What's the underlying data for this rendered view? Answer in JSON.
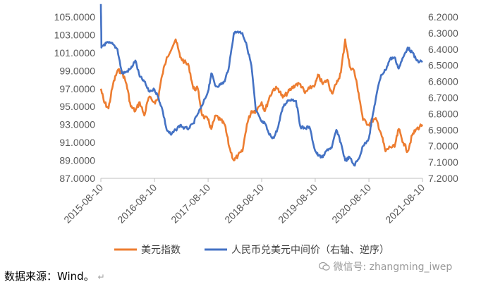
{
  "chart_data": {
    "type": "line",
    "title": "",
    "x": [
      "2015-08-10",
      "2016-08-10",
      "2017-08-10",
      "2018-08-10",
      "2019-08-10",
      "2020-08-10",
      "2021-08-10"
    ],
    "y_left_ticks": [
      "87.0000",
      "89.0000",
      "91.0000",
      "93.0000",
      "95.0000",
      "97.0000",
      "99.0000",
      "101.0000",
      "103.0000",
      "105.0000"
    ],
    "ylim_left": [
      87,
      105
    ],
    "y_right_ticks": [
      "6.2000",
      "6.3000",
      "6.4000",
      "6.5000",
      "6.6000",
      "6.7000",
      "6.8000",
      "6.9000",
      "7.0000",
      "7.1000",
      "7.2000"
    ],
    "ylim_right": [
      6.2,
      7.2
    ],
    "right_axis_reversed": true,
    "grid": false,
    "legend_position": "bottom",
    "series": [
      {
        "name": "美元指数",
        "axis": "left",
        "color": "#ED7D31",
        "points": [
          [
            "2015-08-10",
            97.0
          ],
          [
            "2015-09-01",
            95.5
          ],
          [
            "2015-10-01",
            94.8
          ],
          [
            "2015-11-01",
            97.5
          ],
          [
            "2015-12-01",
            99.0
          ],
          [
            "2016-01-01",
            98.9
          ],
          [
            "2016-02-01",
            97.5
          ],
          [
            "2016-03-01",
            95.0
          ],
          [
            "2016-04-01",
            94.5
          ],
          [
            "2016-05-01",
            95.5
          ],
          [
            "2016-06-01",
            94.0
          ],
          [
            "2016-07-01",
            96.0
          ],
          [
            "2016-08-10",
            95.5
          ],
          [
            "2016-09-01",
            95.8
          ],
          [
            "2016-10-01",
            98.5
          ],
          [
            "2016-11-01",
            100.5
          ],
          [
            "2017-01-01",
            102.5
          ],
          [
            "2017-02-01",
            100.5
          ],
          [
            "2017-03-01",
            100.0
          ],
          [
            "2017-04-01",
            99.5
          ],
          [
            "2017-05-01",
            97.0
          ],
          [
            "2017-06-01",
            97.0
          ],
          [
            "2017-07-01",
            94.0
          ],
          [
            "2017-08-10",
            93.5
          ],
          [
            "2017-09-01",
            92.5
          ],
          [
            "2017-10-01",
            94.0
          ],
          [
            "2017-11-01",
            93.5
          ],
          [
            "2017-12-01",
            93.0
          ],
          [
            "2018-01-01",
            90.5
          ],
          [
            "2018-02-01",
            89.0
          ],
          [
            "2018-03-01",
            89.5
          ],
          [
            "2018-04-01",
            90.0
          ],
          [
            "2018-05-01",
            93.0
          ],
          [
            "2018-06-01",
            94.5
          ],
          [
            "2018-07-01",
            94.5
          ],
          [
            "2018-08-10",
            95.5
          ],
          [
            "2018-09-01",
            94.5
          ],
          [
            "2018-10-01",
            96.0
          ],
          [
            "2018-11-01",
            97.0
          ],
          [
            "2018-12-01",
            97.0
          ],
          [
            "2019-01-01",
            96.0
          ],
          [
            "2019-02-01",
            96.5
          ],
          [
            "2019-03-01",
            97.0
          ],
          [
            "2019-04-01",
            97.5
          ],
          [
            "2019-05-01",
            97.5
          ],
          [
            "2019-06-01",
            96.5
          ],
          [
            "2019-07-01",
            97.0
          ],
          [
            "2019-08-10",
            97.5
          ],
          [
            "2019-09-01",
            98.5
          ],
          [
            "2019-10-01",
            97.5
          ],
          [
            "2019-11-01",
            98.0
          ],
          [
            "2019-12-01",
            96.5
          ],
          [
            "2020-01-01",
            97.5
          ],
          [
            "2020-02-01",
            98.8
          ],
          [
            "2020-03-01",
            102.5
          ],
          [
            "2020-04-01",
            99.5
          ],
          [
            "2020-05-01",
            99.0
          ],
          [
            "2020-06-01",
            96.5
          ],
          [
            "2020-07-01",
            93.5
          ],
          [
            "2020-08-10",
            93.0
          ],
          [
            "2020-09-01",
            93.5
          ],
          [
            "2020-10-01",
            93.5
          ],
          [
            "2020-11-01",
            92.0
          ],
          [
            "2020-12-01",
            90.0
          ],
          [
            "2021-01-01",
            90.5
          ],
          [
            "2021-02-01",
            90.5
          ],
          [
            "2021-03-01",
            92.5
          ],
          [
            "2021-04-01",
            91.0
          ],
          [
            "2021-05-01",
            90.0
          ],
          [
            "2021-06-01",
            91.8
          ],
          [
            "2021-07-01",
            92.5
          ],
          [
            "2021-08-10",
            93.0
          ]
        ]
      },
      {
        "name": "人民币兑美元中间价（右轴、逆序）",
        "axis": "right",
        "color": "#4472C4",
        "points": [
          [
            "2015-08-10",
            6.12
          ],
          [
            "2015-08-14",
            6.39
          ],
          [
            "2015-09-01",
            6.37
          ],
          [
            "2015-10-01",
            6.36
          ],
          [
            "2015-11-01",
            6.37
          ],
          [
            "2015-12-01",
            6.4
          ],
          [
            "2016-01-01",
            6.55
          ],
          [
            "2016-02-01",
            6.54
          ],
          [
            "2016-03-01",
            6.52
          ],
          [
            "2016-04-01",
            6.47
          ],
          [
            "2016-05-01",
            6.57
          ],
          [
            "2016-06-01",
            6.6
          ],
          [
            "2016-07-01",
            6.66
          ],
          [
            "2016-08-10",
            6.65
          ],
          [
            "2016-09-01",
            6.69
          ],
          [
            "2016-10-01",
            6.77
          ],
          [
            "2016-11-01",
            6.9
          ],
          [
            "2016-12-01",
            6.93
          ],
          [
            "2017-01-01",
            6.9
          ],
          [
            "2017-02-01",
            6.87
          ],
          [
            "2017-03-01",
            6.89
          ],
          [
            "2017-04-01",
            6.89
          ],
          [
            "2017-05-01",
            6.86
          ],
          [
            "2017-06-01",
            6.8
          ],
          [
            "2017-07-01",
            6.75
          ],
          [
            "2017-08-10",
            6.66
          ],
          [
            "2017-09-01",
            6.55
          ],
          [
            "2017-10-01",
            6.63
          ],
          [
            "2017-11-01",
            6.62
          ],
          [
            "2017-12-01",
            6.6
          ],
          [
            "2018-01-01",
            6.5
          ],
          [
            "2018-02-01",
            6.3
          ],
          [
            "2018-03-01",
            6.29
          ],
          [
            "2018-04-01",
            6.3
          ],
          [
            "2018-05-01",
            6.38
          ],
          [
            "2018-06-01",
            6.5
          ],
          [
            "2018-07-01",
            6.78
          ],
          [
            "2018-08-10",
            6.85
          ],
          [
            "2018-09-01",
            6.86
          ],
          [
            "2018-10-01",
            6.93
          ],
          [
            "2018-11-01",
            6.95
          ],
          [
            "2018-12-01",
            6.88
          ],
          [
            "2019-01-01",
            6.76
          ],
          [
            "2019-02-01",
            6.72
          ],
          [
            "2019-03-01",
            6.71
          ],
          [
            "2019-04-01",
            6.72
          ],
          [
            "2019-05-01",
            6.88
          ],
          [
            "2019-06-01",
            6.89
          ],
          [
            "2019-07-01",
            6.88
          ],
          [
            "2019-08-10",
            7.03
          ],
          [
            "2019-09-01",
            7.06
          ],
          [
            "2019-10-01",
            7.07
          ],
          [
            "2019-11-01",
            7.02
          ],
          [
            "2019-12-01",
            7.01
          ],
          [
            "2020-01-01",
            6.9
          ],
          [
            "2020-02-01",
            6.98
          ],
          [
            "2020-03-01",
            7.09
          ],
          [
            "2020-04-01",
            7.07
          ],
          [
            "2020-05-01",
            7.12
          ],
          [
            "2020-06-01",
            7.08
          ],
          [
            "2020-07-01",
            7.0
          ],
          [
            "2020-08-10",
            6.95
          ],
          [
            "2020-09-01",
            6.83
          ],
          [
            "2020-10-01",
            6.68
          ],
          [
            "2020-11-01",
            6.56
          ],
          [
            "2020-12-01",
            6.53
          ],
          [
            "2021-01-01",
            6.46
          ],
          [
            "2021-02-01",
            6.45
          ],
          [
            "2021-03-01",
            6.52
          ],
          [
            "2021-04-01",
            6.45
          ],
          [
            "2021-05-01",
            6.39
          ],
          [
            "2021-06-01",
            6.42
          ],
          [
            "2021-07-01",
            6.47
          ],
          [
            "2021-08-10",
            6.48
          ]
        ]
      }
    ]
  },
  "footer": {
    "source_text": "数据来源：Wind。",
    "paragraph_mark": "↵",
    "watermark_text": "微信号: zhangming_iwep"
  }
}
